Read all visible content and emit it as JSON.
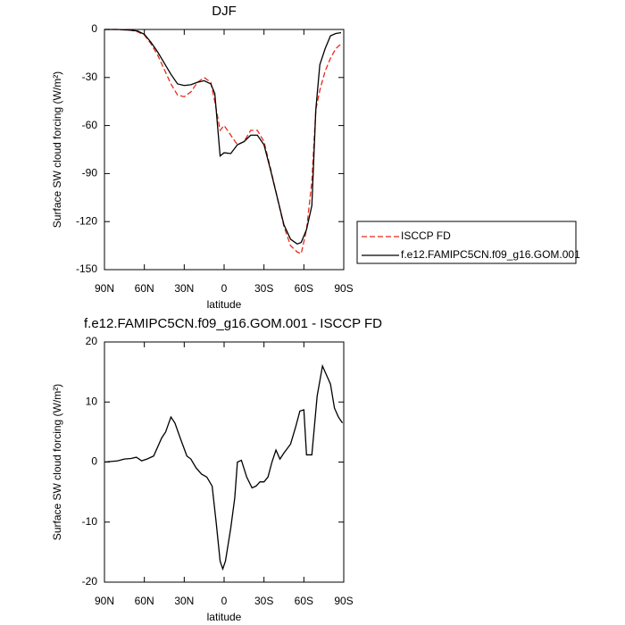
{
  "chart_data": [
    {
      "type": "line",
      "title": "DJF",
      "x_label": "latitude",
      "y_label": "Surface SW cloud forcing (W/m²)",
      "x": [
        90,
        80,
        70,
        65,
        60,
        55,
        50,
        45,
        40,
        35,
        30,
        25,
        20,
        15,
        10,
        7,
        3,
        0,
        -5,
        -10,
        -15,
        -20,
        -25,
        -30,
        -35,
        -40,
        -45,
        -50,
        -55,
        -58,
        -62,
        -66,
        -69,
        -72,
        -76,
        -80,
        -84,
        -88
      ],
      "series": [
        {
          "name": "ISCCP FD",
          "color": "#e8291c",
          "dash": true,
          "values": [
            0,
            0,
            -0.5,
            -1.5,
            -3.5,
            -9,
            -16,
            -25,
            -34,
            -41,
            -42,
            -39,
            -33,
            -30,
            -33,
            -45,
            -63,
            -60,
            -66,
            -72,
            -70,
            -63,
            -63,
            -70,
            -87,
            -105,
            -123,
            -135,
            -139,
            -140,
            -125,
            -95,
            -50,
            -38,
            -26,
            -18,
            -12,
            -9
          ]
        },
        {
          "name": "f.e12.FAMIPC5CN.f09_g16.GOM.001",
          "color": "#000000",
          "dash": false,
          "values": [
            0,
            0,
            -0.5,
            -1,
            -3,
            -8,
            -14,
            -21,
            -28,
            -34,
            -35,
            -34.5,
            -33,
            -32,
            -34,
            -40,
            -79,
            -77,
            -77.5,
            -72,
            -70,
            -66,
            -66,
            -72,
            -88,
            -105,
            -122,
            -131,
            -134,
            -133,
            -125,
            -110,
            -50,
            -22,
            -12,
            -4,
            -2.5,
            -2
          ]
        }
      ],
      "xlim": [
        90,
        -90
      ],
      "xticks": [
        {
          "value": 90,
          "label": "90N"
        },
        {
          "value": 60,
          "label": "60N"
        },
        {
          "value": 30,
          "label": "30N"
        },
        0,
        {
          "value": -30,
          "label": "30S"
        },
        {
          "value": -60,
          "label": "60S"
        },
        {
          "value": -90,
          "label": "90S"
        }
      ],
      "ylim": [
        -150,
        0
      ],
      "yticks": [
        0,
        -30,
        -60,
        -90,
        -120,
        -150
      ],
      "legend": "outside right"
    },
    {
      "type": "line",
      "title": "f.e12.FAMIPC5CN.f09_g16.GOM.001 - ISCCP FD",
      "x_label": "latitude",
      "y_label": "Surface SW cloud forcing (W/m²)",
      "x": [
        90,
        80,
        75,
        70,
        66,
        62,
        58,
        53,
        47,
        44,
        40,
        37,
        33,
        28,
        25,
        21,
        17,
        13,
        9,
        6,
        3,
        1,
        -1,
        -5,
        -8,
        -10,
        -13,
        -17,
        -21,
        -24,
        -27,
        -30,
        -33,
        -36,
        -39,
        -42,
        -45,
        -50,
        -54,
        -57,
        -60,
        -62,
        -66,
        -70,
        -74,
        -80,
        -83,
        -86,
        -89
      ],
      "values": [
        0,
        0.2,
        0.5,
        0.6,
        0.8,
        0.2,
        0.5,
        1,
        4,
        5,
        7.5,
        6.5,
        4,
        1,
        0.5,
        -1,
        -2,
        -2.5,
        -4,
        -10,
        -16.5,
        -17.8,
        -16.5,
        -11,
        -6,
        0,
        0.3,
        -2.5,
        -4.3,
        -4,
        -3.3,
        -3.3,
        -2.5,
        0,
        2,
        0.5,
        1.5,
        3,
        6,
        8.5,
        8.7,
        1.2,
        1.2,
        11,
        16,
        13,
        9,
        7.5,
        6.5
      ],
      "color": "#000000",
      "xlim": [
        90,
        -90
      ],
      "xticks": [
        {
          "value": 90,
          "label": "90N"
        },
        {
          "value": 60,
          "label": "60N"
        },
        {
          "value": 30,
          "label": "30N"
        },
        0,
        {
          "value": -30,
          "label": "30S"
        },
        {
          "value": -60,
          "label": "60S"
        },
        {
          "value": -90,
          "label": "90S"
        }
      ],
      "ylim": [
        -20,
        20
      ],
      "yticks": [
        -20,
        -10,
        0,
        10,
        20
      ]
    }
  ]
}
